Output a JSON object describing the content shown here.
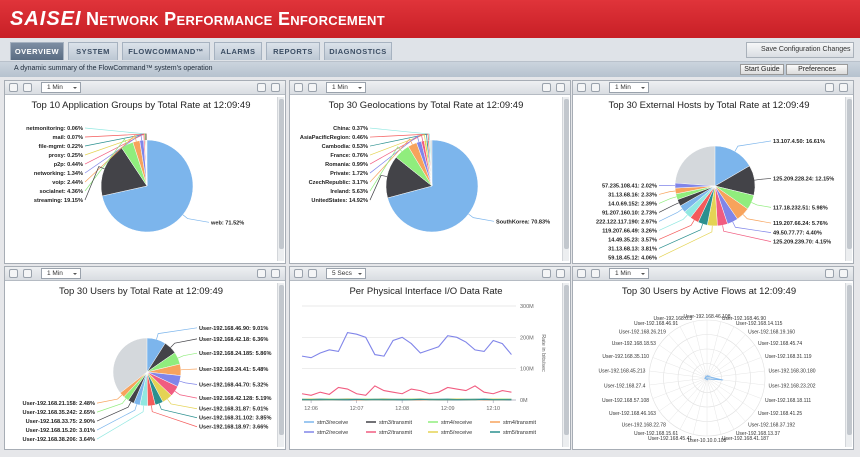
{
  "header": {
    "logo": "SAISEI",
    "title": "Network Performance Enforcement"
  },
  "tabs": [
    "OVERVIEW",
    "SYSTEM",
    "FLOWCOMMAND™",
    "ALARMS",
    "REPORTS",
    "DIAGNOSTICS"
  ],
  "save_button": "Save Configuration Changes",
  "subtitle": "A dynamic summary of the FlowCommand™ system's operation",
  "buttons": [
    "Start Guide",
    "Preferences"
  ],
  "colors": [
    "#7cb5ec",
    "#434348",
    "#90ed7d",
    "#f7a35c",
    "#8085e9",
    "#f15c80",
    "#e4d354",
    "#2b908f",
    "#f45b5b",
    "#91e8e1"
  ],
  "panels": [
    {
      "interval": "1 Min",
      "chart": {
        "type": "pie",
        "title": "Top 10 Application Groups by Total Rate at 12:09:49",
        "labels": [
          "web: 71.52%",
          "streaming: 19.15%",
          "socialnet: 4.36%",
          "voip: 2.44%",
          "networking: 1.34%",
          "p2p: 0.44%",
          "proxy: 0.25%",
          "file-mgmt: 0.22%",
          "mail: 0.07%",
          "netmonitoring: 0.06%"
        ],
        "values": [
          71.52,
          19.15,
          4.36,
          2.44,
          1.34,
          0.44,
          0.25,
          0.22,
          0.07,
          0.06
        ]
      }
    },
    {
      "interval": "1 Min",
      "chart": {
        "type": "pie",
        "title": "Top 30 Geolocations by Total Rate at 12:09:49",
        "labels": [
          "SouthKorea: 70.83%",
          "UnitedStates: 14.92%",
          "Ireland: 5.63%",
          "CzechRepublic: 3.17%",
          "Private: 1.72%",
          "Romania: 0.99%",
          "France: 0.76%",
          "Cambodia: 0.53%",
          "AsiaPacificRegion: 0.46%",
          "China: 0.37%"
        ],
        "values": [
          70.83,
          14.92,
          5.63,
          3.17,
          1.72,
          0.99,
          0.76,
          0.53,
          0.46,
          0.37
        ]
      }
    },
    {
      "interval": "1 Min",
      "chart": {
        "type": "pie",
        "title": "Top 30 External Hosts by Total Rate at 12:09:49",
        "labels": [
          "13.107.4.50: 16.61%",
          "125.209.228.24: 12.15%",
          "117.18.232.51: 5.98%",
          "119.207.66.24: 5.76%",
          "49.50.77.77: 4.40%",
          "125.209.239.70: 4.15%",
          "59.18.45.12: 4.06%",
          "31.13.68.13: 3.81%",
          "14.49.35.23: 3.57%",
          "119.207.66.49: 3.26%",
          "222.122.117.190: 2.97%",
          "91.207.160.10: 2.73%",
          "14.0.69.152: 2.39%",
          "31.13.68.16: 2.33%",
          "57.235.108.41: 2.02%"
        ],
        "values": [
          16.61,
          12.15,
          5.98,
          5.76,
          4.4,
          4.15,
          4.06,
          3.81,
          3.57,
          3.26,
          2.97,
          2.73,
          2.39,
          2.33,
          2.02
        ]
      }
    },
    {
      "interval": "1 Min",
      "chart": {
        "type": "pie",
        "title": "Top 30 Users by Total Rate at 12:09:49",
        "labels": [
          "User-192.168.46.90: 9.01%",
          "User-192.168.42.18: 6.36%",
          "User-192.168.24.185: 5.86%",
          "User-192.168.24.41: 5.48%",
          "User-192.168.44.70: 5.32%",
          "User-192.168.42.128: 5.19%",
          "User-192.168.31.87: 5.01%",
          "User-192.168.31.102: 3.85%",
          "User-192.168.18.97: 3.66%",
          "User-192.168.38.206: 3.64%",
          "User-192.168.15.20: 3.01%",
          "User-192.168.33.75: 2.90%",
          "User-192.168.35.242: 2.65%",
          "User-192.168.21.158: 2.48%"
        ],
        "values": [
          9.01,
          6.36,
          5.86,
          5.48,
          5.32,
          5.19,
          5.01,
          3.85,
          3.66,
          3.64,
          3.01,
          2.9,
          2.65,
          2.48
        ]
      }
    },
    {
      "interval": "5 Secs",
      "chart": {
        "type": "line",
        "title": "Per Physical Interface I/O Data Rate",
        "y_label": "Rate in bits/sec",
        "x": [
          5.8,
          6.0,
          6.2,
          6.4,
          6.6,
          6.8,
          7.0,
          7.2,
          7.4,
          7.6,
          7.8,
          8.0,
          8.2,
          8.4,
          8.6,
          8.8,
          9.0,
          9.2,
          9.4,
          9.6,
          9.8,
          10.0,
          10.2,
          10.4
        ],
        "xlim": [
          5.8,
          10.5
        ],
        "xticks": [
          {
            "value": 6,
            "label": "12:06"
          },
          {
            "value": 7,
            "label": "12:07"
          },
          {
            "value": 8,
            "label": "12:08"
          },
          {
            "value": 9,
            "label": "12:09"
          },
          {
            "value": 10,
            "label": "12:10"
          }
        ],
        "ylim": [
          0,
          300000000
        ],
        "yticks": [
          {
            "value": 0,
            "label": "0M"
          },
          {
            "value": 100000000,
            "label": "100M"
          },
          {
            "value": 200000000,
            "label": "200M"
          },
          {
            "value": 300000000,
            "label": "300M"
          }
        ],
        "series": [
          {
            "name": "stm3/receive",
            "color": "#7cb5ec",
            "values": [
              3000000,
              3000000,
              4000000,
              3000000,
              3000000,
              4000000,
              3000000,
              3000000,
              3000000,
              4000000,
              3000000,
              3000000,
              3000000,
              4000000,
              3000000,
              3000000,
              4000000,
              3000000,
              3000000,
              3000000,
              4000000,
              3000000,
              3000000,
              3000000
            ]
          },
          {
            "name": "stm3/transmit",
            "color": "#434348",
            "values": [
              1000000,
              1000000,
              1000000,
              2000000,
              1000000,
              1000000,
              1000000,
              1000000,
              2000000,
              1000000,
              1000000,
              1000000,
              1000000,
              1000000,
              2000000,
              1000000,
              1000000,
              1000000,
              1000000,
              2000000,
              1000000,
              1000000,
              1000000,
              1000000
            ]
          },
          {
            "name": "stm4/receive",
            "color": "#90ed7d",
            "values": [
              2000000,
              2000000,
              2000000,
              3000000,
              2000000,
              2000000,
              2000000,
              3000000,
              2000000,
              2000000,
              2000000,
              2000000,
              3000000,
              2000000,
              2000000,
              2000000,
              2000000,
              3000000,
              2000000,
              2000000,
              2000000,
              2000000,
              3000000,
              2000000
            ]
          },
          {
            "name": "stm4/transmit",
            "color": "#f7a35c",
            "values": [
              1000000,
              1000000,
              1000000,
              1000000,
              1000000,
              2000000,
              1000000,
              1000000,
              1000000,
              1000000,
              1000000,
              2000000,
              1000000,
              1000000,
              1000000,
              1000000,
              1000000,
              2000000,
              1000000,
              1000000,
              1000000,
              1000000,
              1000000,
              2000000
            ]
          },
          {
            "name": "stm2/receive",
            "color": "#8085e9",
            "values": [
              140000000,
              135000000,
              150000000,
              160000000,
              155000000,
              215000000,
              210000000,
              200000000,
              145000000,
              140000000,
              190000000,
              200000000,
              180000000,
              150000000,
              160000000,
              170000000,
              205000000,
              200000000,
              185000000,
              160000000,
              155000000,
              190000000,
              180000000,
              145000000
            ]
          },
          {
            "name": "stm2/transmit",
            "color": "#f15c80",
            "values": [
              20000000,
              15000000,
              25000000,
              18000000,
              40000000,
              35000000,
              20000000,
              15000000,
              45000000,
              30000000,
              25000000,
              20000000,
              35000000,
              30000000,
              20000000,
              25000000,
              40000000,
              35000000,
              30000000,
              45000000,
              25000000,
              20000000,
              30000000,
              25000000
            ]
          },
          {
            "name": "stm5/receive",
            "color": "#e4d354",
            "values": [
              2000000,
              3000000,
              2000000,
              2000000,
              2000000,
              3000000,
              2000000,
              2000000,
              2000000,
              3000000,
              2000000,
              2000000,
              2000000,
              3000000,
              2000000,
              2000000,
              2000000,
              3000000,
              2000000,
              2000000,
              2000000,
              3000000,
              2000000,
              2000000
            ]
          },
          {
            "name": "stm5/transmit",
            "color": "#2b908f",
            "values": [
              1000000,
              1000000,
              1000000,
              1000000,
              1000000,
              1000000,
              2000000,
              1000000,
              1000000,
              1000000,
              1000000,
              1000000,
              1000000,
              2000000,
              1000000,
              1000000,
              1000000,
              1000000,
              1000000,
              1000000,
              2000000,
              1000000,
              1000000,
              1000000
            ]
          }
        ]
      }
    },
    {
      "interval": "1 Min",
      "chart": {
        "type": "polar",
        "title": "Top 30 Users by Active Flows at 12:09:49",
        "labels": [
          "User-192.168.46.108",
          "User-192.168.46.90",
          "User-192.168.14.115",
          "User-192.168.19.160",
          "User-192.168.45.74",
          "User-192.168.31.119",
          "User-192.168.30.180",
          "User-192.168.23.202",
          "User-192.168.18.111",
          "User-192.168.41.25",
          "User-192.168.37.192",
          "User-192.168.13.37",
          "User-192.168.41.187",
          "User-10.10.0.108",
          "User-192.168.45.41",
          "User-192.168.15.61",
          "User-192.168.22.78",
          "User-192.168.46.163",
          "User-192.168.57.108",
          "User-192.168.27.4",
          "User-192.168.45.213",
          "User-192.168.35.110",
          "User-192.168.18.53",
          "User-192.168.26.219",
          "User-192.168.46.91",
          "User-192.168.0.3"
        ],
        "values": [
          3,
          4,
          3,
          5,
          4,
          6,
          8,
          28,
          6,
          3,
          2,
          2,
          3,
          2,
          2,
          3,
          2,
          2,
          3,
          4,
          3,
          3,
          2,
          3,
          4,
          3
        ],
        "rlim": [
          0,
          100
        ]
      }
    }
  ]
}
